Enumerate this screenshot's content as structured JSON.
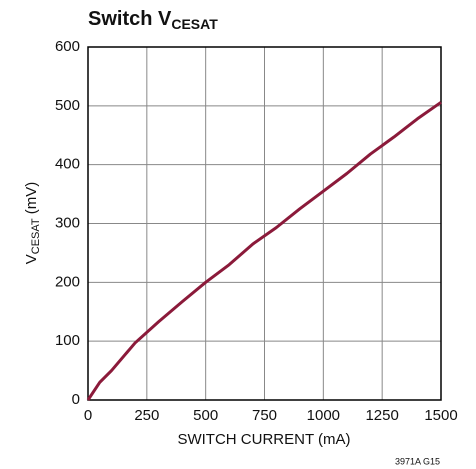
{
  "chart_data": {
    "type": "line",
    "title": {
      "main": "Switch V",
      "sub": "CESAT"
    },
    "xlabel": "SWITCH CURRENT (mA)",
    "ylabel": {
      "main": "V",
      "sub": "CESAT",
      "rest": " (mV)"
    },
    "footnote": "3971A G15",
    "x": [
      0,
      50,
      100,
      200,
      300,
      400,
      500,
      600,
      700,
      800,
      900,
      1000,
      1100,
      1200,
      1300,
      1400,
      1500
    ],
    "values": [
      0,
      30,
      50,
      97,
      133,
      167,
      200,
      230,
      265,
      293,
      325,
      355,
      385,
      418,
      447,
      478,
      506
    ],
    "color": "#8b1a3a",
    "xlim": [
      0,
      1500
    ],
    "xticks": [
      0,
      250,
      500,
      750,
      1000,
      1250,
      1500
    ],
    "ylim": [
      0,
      600
    ],
    "yticks": [
      0,
      100,
      200,
      300,
      400,
      500,
      600
    ],
    "grid": true
  }
}
